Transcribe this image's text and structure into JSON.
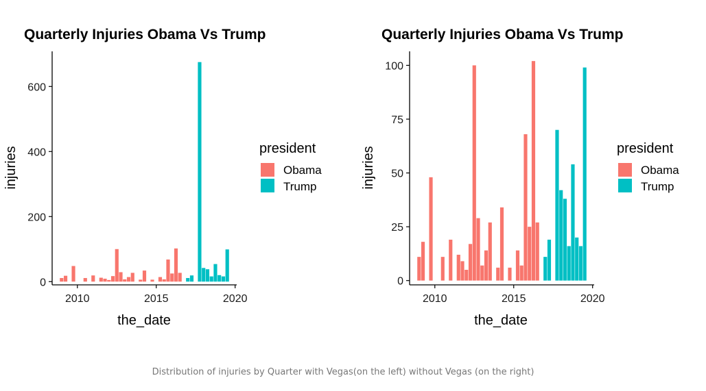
{
  "colors": {
    "Obama": "#F8766D",
    "Trump": "#00BFC4",
    "axis": "#000000"
  },
  "caption": "Distribution of injuries by Quarter with Vegas(on the left) without Vegas (on the right)",
  "chart_data": [
    {
      "type": "bar",
      "title": "Quarterly Injuries Obama Vs Trump",
      "xlabel": "the_date",
      "ylabel": "injuries",
      "xlim": [
        2008.4,
        2020.1
      ],
      "ylim": [
        -10,
        708
      ],
      "xticks": [
        2010,
        2015,
        2020
      ],
      "yticks": [
        0,
        200,
        400,
        600
      ],
      "grid": false,
      "legend": {
        "title": "president",
        "position": "right",
        "entries": [
          "Obama",
          "Trump"
        ]
      },
      "series": [
        {
          "name": "Obama",
          "points": [
            {
              "x": 2009.0,
              "y": 11
            },
            {
              "x": 2009.25,
              "y": 18
            },
            {
              "x": 2009.75,
              "y": 48
            },
            {
              "x": 2010.5,
              "y": 11
            },
            {
              "x": 2011.0,
              "y": 19
            },
            {
              "x": 2011.5,
              "y": 12
            },
            {
              "x": 2011.75,
              "y": 9
            },
            {
              "x": 2012.0,
              "y": 5
            },
            {
              "x": 2012.25,
              "y": 17
            },
            {
              "x": 2012.5,
              "y": 100
            },
            {
              "x": 2012.75,
              "y": 29
            },
            {
              "x": 2013.0,
              "y": 7
            },
            {
              "x": 2013.25,
              "y": 14
            },
            {
              "x": 2013.5,
              "y": 27
            },
            {
              "x": 2014.0,
              "y": 6
            },
            {
              "x": 2014.25,
              "y": 34
            },
            {
              "x": 2014.75,
              "y": 6
            },
            {
              "x": 2015.25,
              "y": 14
            },
            {
              "x": 2015.5,
              "y": 7
            },
            {
              "x": 2015.75,
              "y": 68
            },
            {
              "x": 2016.0,
              "y": 25
            },
            {
              "x": 2016.25,
              "y": 102
            },
            {
              "x": 2016.5,
              "y": 27
            }
          ]
        },
        {
          "name": "Trump",
          "points": [
            {
              "x": 2017.0,
              "y": 11
            },
            {
              "x": 2017.25,
              "y": 19
            },
            {
              "x": 2017.75,
              "y": 675
            },
            {
              "x": 2018.0,
              "y": 42
            },
            {
              "x": 2018.25,
              "y": 38
            },
            {
              "x": 2018.5,
              "y": 16
            },
            {
              "x": 2018.75,
              "y": 54
            },
            {
              "x": 2019.0,
              "y": 20
            },
            {
              "x": 2019.25,
              "y": 16
            },
            {
              "x": 2019.5,
              "y": 99
            }
          ]
        }
      ]
    },
    {
      "type": "bar",
      "title": "Quarterly Injuries Obama Vs Trump",
      "xlabel": "the_date",
      "ylabel": "injuries",
      "xlim": [
        2008.4,
        2020.1
      ],
      "ylim": [
        -2,
        106.5
      ],
      "xticks": [
        2010,
        2015,
        2020
      ],
      "yticks": [
        0,
        25,
        50,
        75,
        100
      ],
      "grid": false,
      "legend": {
        "title": "president",
        "position": "right",
        "entries": [
          "Obama",
          "Trump"
        ]
      },
      "series": [
        {
          "name": "Obama",
          "points": [
            {
              "x": 2009.0,
              "y": 11
            },
            {
              "x": 2009.25,
              "y": 18
            },
            {
              "x": 2009.75,
              "y": 48
            },
            {
              "x": 2010.5,
              "y": 11
            },
            {
              "x": 2011.0,
              "y": 19
            },
            {
              "x": 2011.5,
              "y": 12
            },
            {
              "x": 2011.75,
              "y": 9
            },
            {
              "x": 2012.0,
              "y": 5
            },
            {
              "x": 2012.25,
              "y": 17
            },
            {
              "x": 2012.5,
              "y": 100
            },
            {
              "x": 2012.75,
              "y": 29
            },
            {
              "x": 2013.0,
              "y": 7
            },
            {
              "x": 2013.25,
              "y": 14
            },
            {
              "x": 2013.5,
              "y": 27
            },
            {
              "x": 2014.0,
              "y": 6
            },
            {
              "x": 2014.25,
              "y": 34
            },
            {
              "x": 2014.75,
              "y": 6
            },
            {
              "x": 2015.25,
              "y": 14
            },
            {
              "x": 2015.5,
              "y": 7
            },
            {
              "x": 2015.75,
              "y": 68
            },
            {
              "x": 2016.0,
              "y": 25
            },
            {
              "x": 2016.25,
              "y": 102
            },
            {
              "x": 2016.5,
              "y": 27
            }
          ]
        },
        {
          "name": "Trump",
          "points": [
            {
              "x": 2017.0,
              "y": 11
            },
            {
              "x": 2017.25,
              "y": 19
            },
            {
              "x": 2017.75,
              "y": 70
            },
            {
              "x": 2018.0,
              "y": 42
            },
            {
              "x": 2018.25,
              "y": 38
            },
            {
              "x": 2018.5,
              "y": 16
            },
            {
              "x": 2018.75,
              "y": 54
            },
            {
              "x": 2019.0,
              "y": 20
            },
            {
              "x": 2019.25,
              "y": 16
            },
            {
              "x": 2019.5,
              "y": 99
            }
          ]
        }
      ]
    }
  ]
}
